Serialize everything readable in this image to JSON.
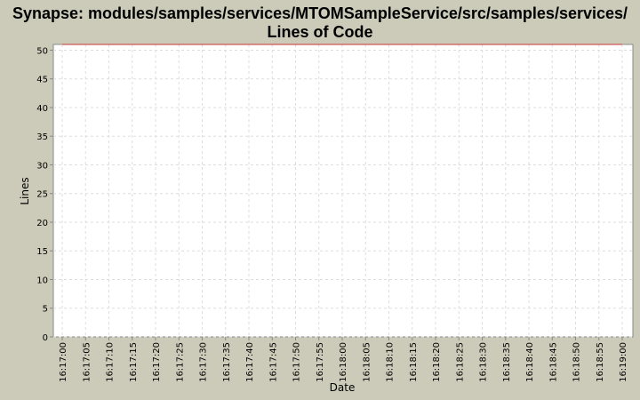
{
  "chart_data": {
    "type": "line",
    "title": "Synapse: modules/samples/services/MTOMSampleService/src/samples/services/",
    "subtitle": "Lines of Code",
    "xlabel": "Date",
    "ylabel": "Lines",
    "ylim": [
      0,
      51
    ],
    "yticks": [
      0,
      5,
      10,
      15,
      20,
      25,
      30,
      35,
      40,
      45,
      50
    ],
    "xticks": [
      "16:17:00",
      "16:17:05",
      "16:17:10",
      "16:17:15",
      "16:17:20",
      "16:17:25",
      "16:17:30",
      "16:17:35",
      "16:17:40",
      "16:17:45",
      "16:17:50",
      "16:17:55",
      "16:18:00",
      "16:18:05",
      "16:18:10",
      "16:18:15",
      "16:18:20",
      "16:18:25",
      "16:18:30",
      "16:18:35",
      "16:18:40",
      "16:18:45",
      "16:18:50",
      "16:18:55",
      "16:19:00"
    ],
    "grid": true,
    "series": [
      {
        "color": "#cc3333",
        "points": [
          {
            "x": "16:17:00",
            "y": 51
          },
          {
            "x": "16:19:00",
            "y": 51
          }
        ]
      }
    ]
  }
}
